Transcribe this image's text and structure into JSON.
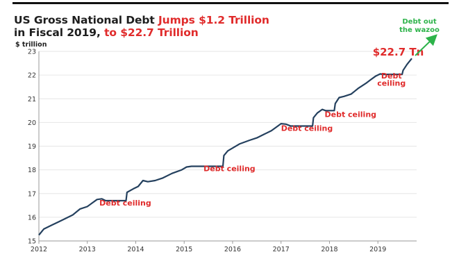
{
  "chart_data": {
    "type": "line",
    "title": {
      "part1": "US Gross National Debt ",
      "part2": "Jumps $1.2 Trillion",
      "part3": "in Fiscal 2019, ",
      "part4": "to $22.7 Trillion"
    },
    "ylabel": "$ trillion",
    "xlabel": "",
    "ylim": [
      15,
      23
    ],
    "xlim": [
      2012,
      2019.8
    ],
    "y_ticks": [
      "15",
      "16",
      "17",
      "18",
      "19",
      "20",
      "21",
      "22",
      "23"
    ],
    "x_ticks": [
      "2012",
      "2013",
      "2014",
      "2015",
      "2016",
      "2017",
      "2018",
      "2019"
    ],
    "grid": "horizontal",
    "series": [
      {
        "color": "#24405e",
        "points": [
          [
            2012.0,
            15.25
          ],
          [
            2012.1,
            15.5
          ],
          [
            2012.25,
            15.65
          ],
          [
            2012.4,
            15.8
          ],
          [
            2012.55,
            15.95
          ],
          [
            2012.7,
            16.1
          ],
          [
            2012.85,
            16.35
          ],
          [
            2013.0,
            16.45
          ],
          [
            2013.1,
            16.6
          ],
          [
            2013.2,
            16.75
          ],
          [
            2013.3,
            16.78
          ],
          [
            2013.38,
            16.7
          ],
          [
            2013.8,
            16.7
          ],
          [
            2013.82,
            17.05
          ],
          [
            2013.95,
            17.2
          ],
          [
            2014.05,
            17.3
          ],
          [
            2014.15,
            17.55
          ],
          [
            2014.25,
            17.5
          ],
          [
            2014.4,
            17.55
          ],
          [
            2014.55,
            17.65
          ],
          [
            2014.75,
            17.85
          ],
          [
            2014.95,
            18.0
          ],
          [
            2015.05,
            18.12
          ],
          [
            2015.15,
            18.15
          ],
          [
            2015.8,
            18.15
          ],
          [
            2015.82,
            18.6
          ],
          [
            2015.9,
            18.8
          ],
          [
            2016.0,
            18.92
          ],
          [
            2016.15,
            19.1
          ],
          [
            2016.35,
            19.25
          ],
          [
            2016.5,
            19.35
          ],
          [
            2016.65,
            19.5
          ],
          [
            2016.8,
            19.65
          ],
          [
            2016.9,
            19.8
          ],
          [
            2017.0,
            19.95
          ],
          [
            2017.1,
            19.93
          ],
          [
            2017.2,
            19.85
          ],
          [
            2017.65,
            19.85
          ],
          [
            2017.67,
            20.2
          ],
          [
            2017.75,
            20.4
          ],
          [
            2017.85,
            20.55
          ],
          [
            2017.92,
            20.5
          ],
          [
            2018.1,
            20.5
          ],
          [
            2018.12,
            20.8
          ],
          [
            2018.2,
            21.05
          ],
          [
            2018.3,
            21.1
          ],
          [
            2018.45,
            21.2
          ],
          [
            2018.6,
            21.45
          ],
          [
            2018.75,
            21.65
          ],
          [
            2018.85,
            21.8
          ],
          [
            2018.95,
            21.95
          ],
          [
            2019.05,
            22.05
          ],
          [
            2019.1,
            22.03
          ],
          [
            2019.5,
            22.03
          ],
          [
            2019.52,
            22.2
          ],
          [
            2019.6,
            22.45
          ],
          [
            2019.7,
            22.7
          ]
        ]
      }
    ],
    "annotations": [
      {
        "text": "Debt ceiling",
        "x": 2013.25,
        "y": 16.5,
        "anchor": "start"
      },
      {
        "text": "Debt ceiling",
        "x": 2015.4,
        "y": 17.95,
        "anchor": "start"
      },
      {
        "text": "Debt ceiling",
        "x": 2017.0,
        "y": 19.65,
        "anchor": "start"
      },
      {
        "text": "Debt ceiling",
        "x": 2017.9,
        "y": 20.23,
        "anchor": "start"
      },
      {
        "text": "Debt",
        "x": 2019.28,
        "y": 21.85,
        "anchor": "middle"
      },
      {
        "text": "ceiling",
        "x": 2019.28,
        "y": 21.55,
        "anchor": "middle"
      }
    ],
    "value_label": {
      "text": "$22.7 Tn",
      "x": 2019.42,
      "y": 22.82
    },
    "arrow_label": {
      "line1": "Debt out",
      "line2": "the wazoo"
    }
  }
}
